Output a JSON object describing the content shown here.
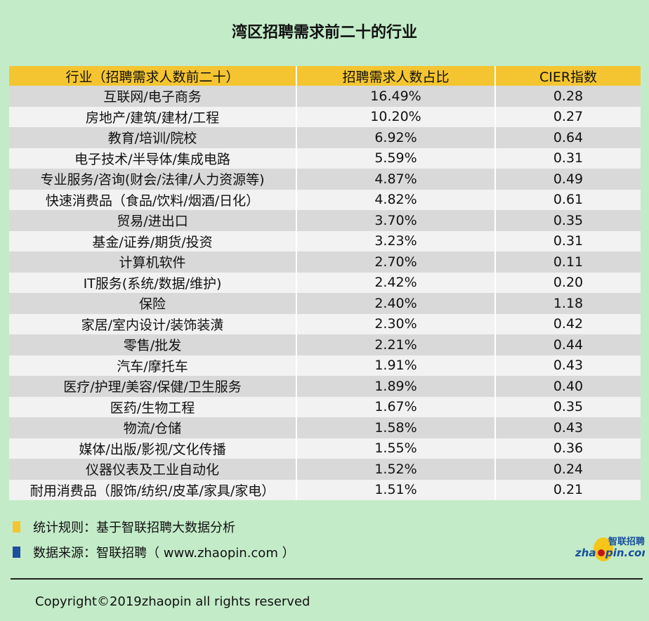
{
  "title": "湾区招聘需求前二十的行业",
  "chart_data": {
    "type": "table",
    "title": "湾区招聘需求前二十的行业",
    "columns": [
      "行业（招聘需求人数前二十）",
      "招聘需求人数占比",
      "CIER指数"
    ],
    "rows": [
      [
        "互联网/电子商务",
        "16.49%",
        "0.28"
      ],
      [
        "房地产/建筑/建材/工程",
        "10.20%",
        "0.27"
      ],
      [
        "教育/培训/院校",
        "6.92%",
        "0.64"
      ],
      [
        "电子技术/半导体/集成电路",
        "5.59%",
        "0.31"
      ],
      [
        "专业服务/咨询(财会/法律/人力资源等)",
        "4.87%",
        "0.49"
      ],
      [
        "快速消费品（食品/饮料/烟酒/日化）",
        "4.82%",
        "0.61"
      ],
      [
        "贸易/进出口",
        "3.70%",
        "0.35"
      ],
      [
        "基金/证券/期货/投资",
        "3.23%",
        "0.31"
      ],
      [
        "计算机软件",
        "2.70%",
        "0.11"
      ],
      [
        "IT服务(系统/数据/维护)",
        "2.42%",
        "0.20"
      ],
      [
        "保险",
        "2.40%",
        "1.18"
      ],
      [
        "家居/室内设计/装饰装潢",
        "2.30%",
        "0.42"
      ],
      [
        "零售/批发",
        "2.21%",
        "0.44"
      ],
      [
        "汽车/摩托车",
        "1.91%",
        "0.43"
      ],
      [
        "医疗/护理/美容/保健/卫生服务",
        "1.89%",
        "0.40"
      ],
      [
        "医药/生物工程",
        "1.67%",
        "0.35"
      ],
      [
        "物流/仓储",
        "1.58%",
        "0.43"
      ],
      [
        "媒体/出版/影视/文化传播",
        "1.55%",
        "0.36"
      ],
      [
        "仪器仪表及工业自动化",
        "1.52%",
        "0.24"
      ],
      [
        "耐用消费品（服饰/纺织/皮革/家具/家电）",
        "1.51%",
        "0.21"
      ]
    ]
  },
  "notes": [
    {
      "text": "统计规则：基于智联招聘大数据分析",
      "color": "#f4c530"
    },
    {
      "text": "数据来源：智联招聘（ www.zhaopin.com ）",
      "color": "#1f4e9c"
    }
  ],
  "logo": {
    "cn": "智联招聘",
    "en": "zhaopin.com"
  },
  "copyright": "Copyright©2019zhaopin all rights reserved",
  "colors": {
    "background": "#c3ebc8",
    "header": "#f4c530",
    "row_dark": "#d9d9d9",
    "row_light": "#f2f2f2"
  }
}
